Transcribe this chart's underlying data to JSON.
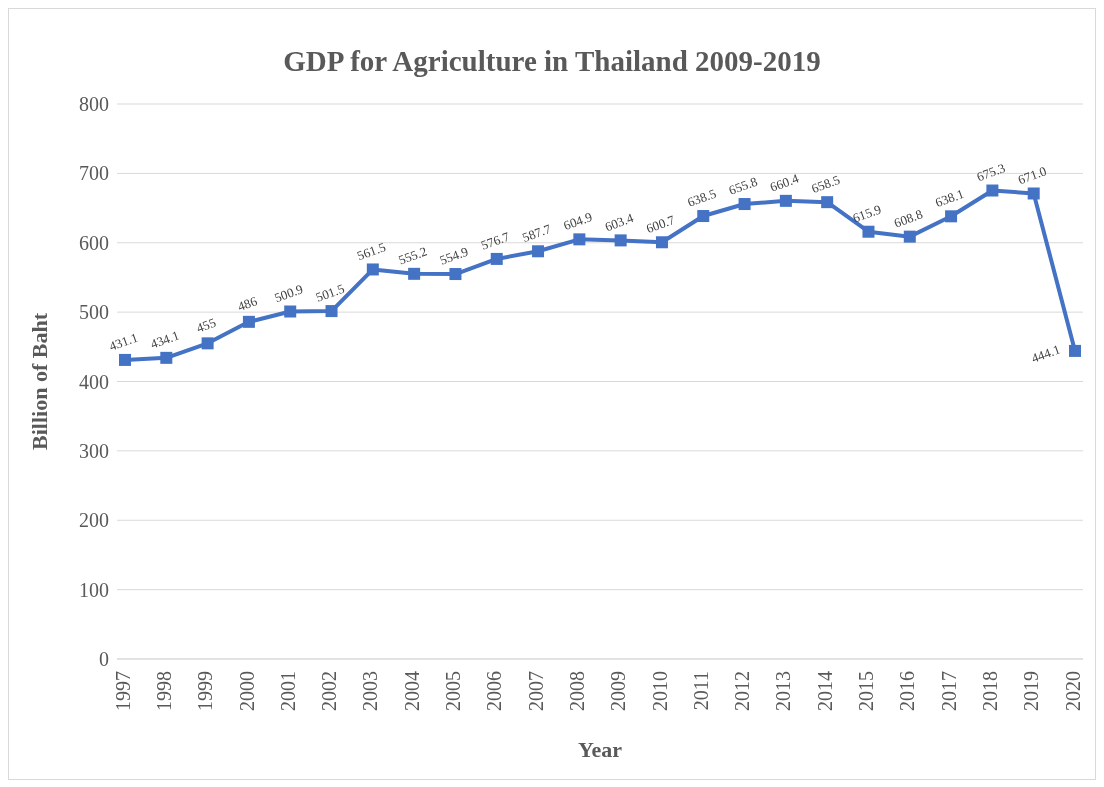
{
  "chart_data": {
    "type": "line",
    "title": "GDP for Agriculture in Thailand 2009-2019",
    "xlabel": "Year",
    "ylabel": "Billion of Baht",
    "categories": [
      "1997",
      "1998",
      "1999",
      "2000",
      "2001",
      "2002",
      "2003",
      "2004",
      "2005",
      "2006",
      "2007",
      "2008",
      "2009",
      "2010",
      "2011",
      "2012",
      "2013",
      "2014",
      "2015",
      "2016",
      "2017",
      "2018",
      "2019",
      "2020"
    ],
    "series": [
      {
        "color": "#4472c4",
        "values": [
          431.1,
          434.1,
          455,
          486,
          500.9,
          501.5,
          561.5,
          555.2,
          554.9,
          576.7,
          587.7,
          604.9,
          603.4,
          600.7,
          638.5,
          655.8,
          660.4,
          658.5,
          615.9,
          608.8,
          638.1,
          675.3,
          671.0,
          444.1
        ],
        "value_labels": [
          "431.1",
          "434.1",
          "455",
          "486",
          "500.9",
          "501.5",
          "561.5",
          "555.2",
          "554.9",
          "576.7",
          "587.7",
          "604.9",
          "603.4",
          "600.7",
          "638.5",
          "655.8",
          "660.4",
          "658.5",
          "615.9",
          "608.8",
          "638.1",
          "675.3",
          "671.0",
          "444.1"
        ]
      }
    ],
    "ylim": [
      0,
      800
    ],
    "yticks": [
      0,
      100,
      200,
      300,
      400,
      500,
      600,
      700,
      800
    ],
    "grid": "y",
    "marker": "square",
    "line_style": "solid"
  }
}
